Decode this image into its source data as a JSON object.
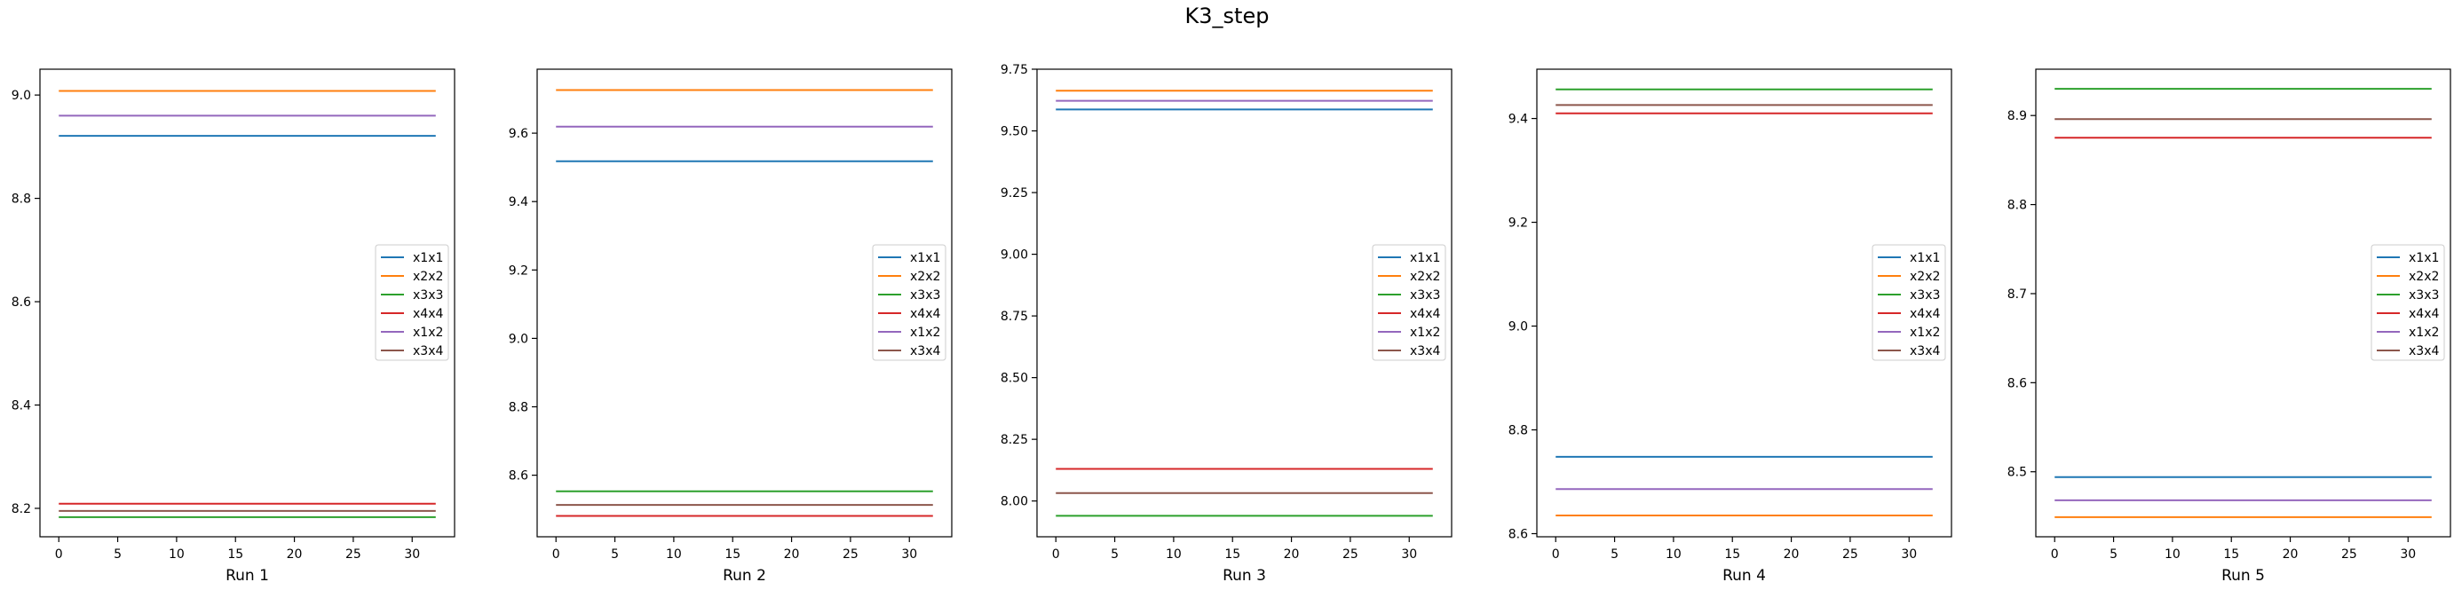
{
  "figure": {
    "title": "K3_step"
  },
  "colors": {
    "x1x1": "#1f77b4",
    "x2x2": "#ff7f0e",
    "x3x3": "#2ca02c",
    "x4x4": "#d62728",
    "x1x2": "#9467bd",
    "x3x4": "#8c564b"
  },
  "chart_data": [
    {
      "type": "line",
      "title": "",
      "xlabel": "Run 1",
      "ylabel": "",
      "x": [
        0,
        32
      ],
      "xlim": [
        -1.6,
        33.6
      ],
      "ylim": [
        8.145,
        9.05
      ],
      "xticks": [
        0,
        5,
        10,
        15,
        20,
        25,
        30
      ],
      "yticks": [
        8.2,
        8.4,
        8.6,
        8.8,
        9.0
      ],
      "ytick_labels": [
        "8.2",
        "8.4",
        "8.6",
        "8.8",
        "9.0"
      ],
      "legend_position": "center right",
      "grid": false,
      "series": [
        {
          "name": "x1x1",
          "values": [
            8.921,
            8.921
          ]
        },
        {
          "name": "x2x2",
          "values": [
            9.008,
            9.008
          ]
        },
        {
          "name": "x3x3",
          "values": [
            8.183,
            8.183
          ]
        },
        {
          "name": "x4x4",
          "values": [
            8.209,
            8.209
          ]
        },
        {
          "name": "x1x2",
          "values": [
            8.96,
            8.96
          ]
        },
        {
          "name": "x3x4",
          "values": [
            8.195,
            8.195
          ]
        }
      ]
    },
    {
      "type": "line",
      "title": "",
      "xlabel": "Run 2",
      "ylabel": "",
      "x": [
        0,
        32
      ],
      "xlim": [
        -1.6,
        33.6
      ],
      "ylim": [
        8.42,
        9.787
      ],
      "xticks": [
        0,
        5,
        10,
        15,
        20,
        25,
        30
      ],
      "yticks": [
        8.6,
        8.8,
        9.0,
        9.2,
        9.4,
        9.6
      ],
      "ytick_labels": [
        "8.6",
        "8.8",
        "9.0",
        "9.2",
        "9.4",
        "9.6"
      ],
      "legend_position": "center right",
      "grid": false,
      "series": [
        {
          "name": "x1x1",
          "values": [
            9.518,
            9.518
          ]
        },
        {
          "name": "x2x2",
          "values": [
            9.726,
            9.726
          ]
        },
        {
          "name": "x3x3",
          "values": [
            8.553,
            8.553
          ]
        },
        {
          "name": "x4x4",
          "values": [
            8.481,
            8.481
          ]
        },
        {
          "name": "x1x2",
          "values": [
            9.619,
            9.619
          ]
        },
        {
          "name": "x3x4",
          "values": [
            8.513,
            8.513
          ]
        }
      ]
    },
    {
      "type": "line",
      "title": "",
      "xlabel": "Run 3",
      "ylabel": "",
      "x": [
        0,
        32
      ],
      "xlim": [
        -1.6,
        33.6
      ],
      "ylim": [
        7.855,
        9.75
      ],
      "xticks": [
        0,
        5,
        10,
        15,
        20,
        25,
        30
      ],
      "yticks": [
        8.0,
        8.25,
        8.5,
        8.75,
        9.0,
        9.25,
        9.5,
        9.75
      ],
      "ytick_labels": [
        "8.00",
        "8.25",
        "8.50",
        "8.75",
        "9.00",
        "9.25",
        "9.50",
        "9.75"
      ],
      "legend_position": "center right",
      "grid": false,
      "series": [
        {
          "name": "x1x1",
          "values": [
            9.587,
            9.587
          ]
        },
        {
          "name": "x2x2",
          "values": [
            9.663,
            9.663
          ]
        },
        {
          "name": "x3x3",
          "values": [
            7.94,
            7.94
          ]
        },
        {
          "name": "x4x4",
          "values": [
            8.13,
            8.13
          ]
        },
        {
          "name": "x1x2",
          "values": [
            9.622,
            9.622
          ]
        },
        {
          "name": "x3x4",
          "values": [
            8.032,
            8.032
          ]
        }
      ]
    },
    {
      "type": "line",
      "title": "",
      "xlabel": "Run 4",
      "ylabel": "",
      "x": [
        0,
        32
      ],
      "xlim": [
        -1.6,
        33.6
      ],
      "ylim": [
        8.594,
        9.495
      ],
      "xticks": [
        0,
        5,
        10,
        15,
        20,
        25,
        30
      ],
      "yticks": [
        8.6,
        8.8,
        9.0,
        9.2,
        9.4
      ],
      "ytick_labels": [
        "8.6",
        "8.8",
        "9.0",
        "9.2",
        "9.4"
      ],
      "legend_position": "center right",
      "grid": false,
      "series": [
        {
          "name": "x1x1",
          "values": [
            8.748,
            8.748
          ]
        },
        {
          "name": "x2x2",
          "values": [
            8.635,
            8.635
          ]
        },
        {
          "name": "x3x3",
          "values": [
            9.456,
            9.456
          ]
        },
        {
          "name": "x4x4",
          "values": [
            9.41,
            9.41
          ]
        },
        {
          "name": "x1x2",
          "values": [
            8.686,
            8.686
          ]
        },
        {
          "name": "x3x4",
          "values": [
            9.426,
            9.426
          ]
        }
      ]
    },
    {
      "type": "line",
      "title": "",
      "xlabel": "Run 5",
      "ylabel": "",
      "x": [
        0,
        32
      ],
      "xlim": [
        -1.6,
        33.6
      ],
      "ylim": [
        8.427,
        8.952
      ],
      "xticks": [
        0,
        5,
        10,
        15,
        20,
        25,
        30
      ],
      "yticks": [
        8.5,
        8.6,
        8.7,
        8.8,
        8.9
      ],
      "ytick_labels": [
        "8.5",
        "8.6",
        "8.7",
        "8.8",
        "8.9"
      ],
      "legend_position": "center right",
      "grid": false,
      "series": [
        {
          "name": "x1x1",
          "values": [
            8.494,
            8.494
          ]
        },
        {
          "name": "x2x2",
          "values": [
            8.449,
            8.449
          ]
        },
        {
          "name": "x3x3",
          "values": [
            8.93,
            8.93
          ]
        },
        {
          "name": "x4x4",
          "values": [
            8.875,
            8.875
          ]
        },
        {
          "name": "x1x2",
          "values": [
            8.468,
            8.468
          ]
        },
        {
          "name": "x3x4",
          "values": [
            8.896,
            8.896
          ]
        }
      ]
    }
  ]
}
